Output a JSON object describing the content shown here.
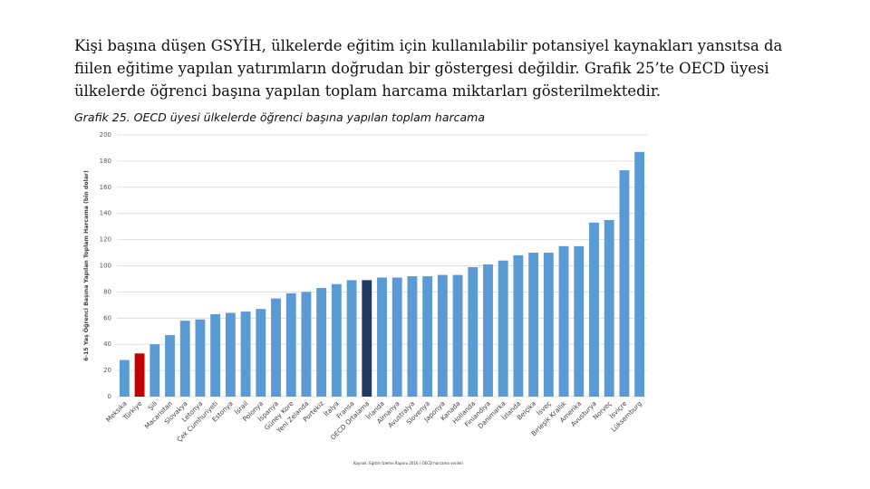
{
  "intro": {
    "text": "Kişi başına düşen GSYİH, ülkelerde eğitim için kullanılabilir potansiyel kaynakları yansıtsa da fiilen eğitime yapılan yatırımların doğrudan bir göstergesi değildir. Grafik 25’te OECD üyesi ülkelerde öğrenci başına yapılan toplam harcama miktarları gösterilmektedir."
  },
  "chart_data": {
    "type": "bar",
    "title": "Grafik 25. OECD üyesi ülkelerde öğrenci başına yapılan toplam harcama",
    "ylabel": "6-15 Yaş Öğrenci Başına Yapılan Toplam Harcama (bin dolar)",
    "xlabel": "",
    "ylim": [
      0,
      200
    ],
    "yticks": [
      0,
      20,
      40,
      60,
      80,
      100,
      120,
      140,
      160,
      180,
      200
    ],
    "grid": true,
    "categories": [
      "Meksika",
      "Türkiye",
      "Şili",
      "Macaristan",
      "Slovakya",
      "Letonya",
      "Çek Cumhuriyeti",
      "Estonya",
      "İsrail",
      "Polonya",
      "İspanya",
      "Güney Kore",
      "Yeni Zelanda",
      "Portekiz",
      "İtalya",
      "Fransa",
      "OECD Ortalama",
      "İrlanda",
      "Almanya",
      "Avustralya",
      "Slovenya",
      "Japonya",
      "Kanada",
      "Hollanda",
      "Finlandiya",
      "Danimarka",
      "İzlanda",
      "Belçika",
      "İsveç",
      "Birleşik Krallık",
      "Amerika",
      "Avusturya",
      "Norveç",
      "İsviçre",
      "Lüksemburg"
    ],
    "values": [
      28,
      33,
      40,
      47,
      58,
      59,
      63,
      64,
      65,
      67,
      75,
      79,
      80,
      83,
      86,
      89,
      89,
      91,
      91,
      92,
      92,
      93,
      93,
      99,
      101,
      104,
      108,
      110,
      110,
      115,
      115,
      133,
      135,
      173,
      187
    ],
    "colors": {
      "default": "#5b9bd5",
      "turkey": "#c00000",
      "oecd": "#1f3864"
    },
    "highlight": {
      "turkey": "Türkiye",
      "oecd": "OECD Ortalama"
    },
    "source": "Kaynak: Eğitim İzleme Raporu 2016 / OECD harcama verileri"
  }
}
